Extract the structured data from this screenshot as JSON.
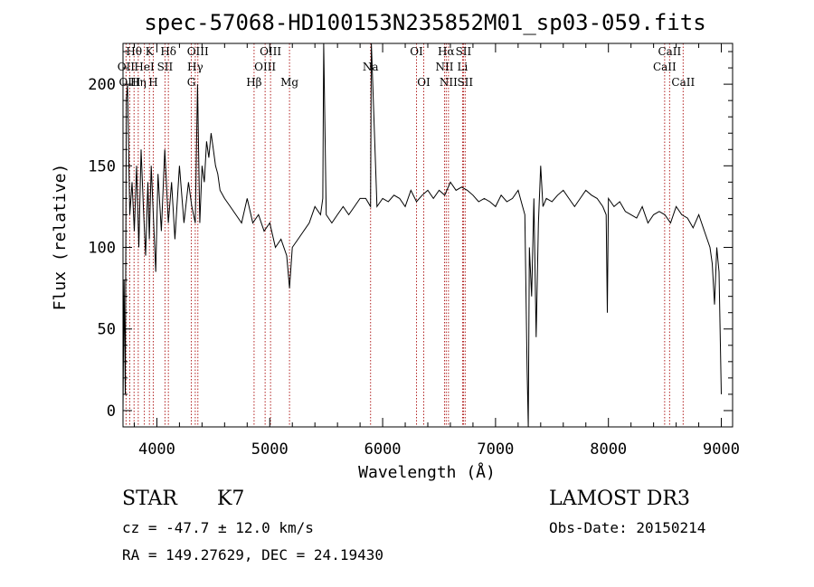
{
  "chart_data": {
    "type": "line",
    "title": "spec-57068-HD100153N235852M01_sp03-059.fits",
    "xlabel": "Wavelength (Å)",
    "ylabel": "Flux (relative)",
    "xlim": [
      3700,
      9100
    ],
    "ylim": [
      -10,
      225
    ],
    "x_ticks": [
      4000,
      5000,
      6000,
      7000,
      8000,
      9000
    ],
    "y_ticks": [
      0,
      50,
      100,
      150,
      200
    ],
    "grid": false,
    "series": [
      {
        "color": "#000000",
        "x": [
          3700,
          3710,
          3720,
          3730,
          3740,
          3760,
          3780,
          3800,
          3820,
          3840,
          3860,
          3880,
          3900,
          3920,
          3933,
          3950,
          3968,
          3990,
          4010,
          4040,
          4070,
          4101,
          4130,
          4160,
          4200,
          4240,
          4280,
          4310,
          4340,
          4360,
          4380,
          4400,
          4420,
          4440,
          4460,
          4480,
          4500,
          4520,
          4540,
          4560,
          4600,
          4650,
          4700,
          4750,
          4800,
          4850,
          4900,
          4950,
          5000,
          5050,
          5100,
          5150,
          5175,
          5200,
          5250,
          5300,
          5350,
          5400,
          5450,
          5470,
          5478,
          5500,
          5550,
          5600,
          5650,
          5700,
          5750,
          5800,
          5850,
          5893,
          5900,
          5950,
          6000,
          6050,
          6100,
          6150,
          6200,
          6250,
          6300,
          6350,
          6400,
          6450,
          6500,
          6550,
          6600,
          6650,
          6700,
          6750,
          6800,
          6850,
          6900,
          6950,
          7000,
          7050,
          7100,
          7150,
          7200,
          7240,
          7260,
          7280,
          7290,
          7300,
          7320,
          7340,
          7360,
          7380,
          7400,
          7420,
          7450,
          7500,
          7550,
          7600,
          7650,
          7700,
          7750,
          7800,
          7850,
          7900,
          7950,
          7980,
          7990,
          8000,
          8050,
          8100,
          8150,
          8200,
          8250,
          8300,
          8350,
          8400,
          8450,
          8500,
          8550,
          8600,
          8650,
          8700,
          8750,
          8800,
          8850,
          8900,
          8920,
          8940,
          8960,
          8980,
          9000
        ],
        "y": [
          0,
          80,
          10,
          190,
          200,
          120,
          140,
          110,
          150,
          100,
          160,
          125,
          95,
          140,
          105,
          150,
          120,
          85,
          145,
          110,
          160,
          115,
          140,
          105,
          150,
          115,
          140,
          125,
          115,
          200,
          115,
          150,
          140,
          165,
          155,
          170,
          160,
          150,
          145,
          135,
          130,
          125,
          120,
          115,
          130,
          115,
          120,
          110,
          115,
          100,
          105,
          95,
          75,
          100,
          105,
          110,
          115,
          125,
          120,
          130,
          230,
          120,
          115,
          120,
          125,
          120,
          125,
          130,
          130,
          125,
          225,
          125,
          130,
          128,
          132,
          130,
          125,
          135,
          128,
          132,
          135,
          130,
          135,
          132,
          140,
          135,
          137,
          135,
          132,
          128,
          130,
          128,
          125,
          132,
          128,
          130,
          135,
          125,
          120,
          25,
          -10,
          100,
          70,
          130,
          45,
          115,
          150,
          125,
          130,
          128,
          132,
          135,
          130,
          125,
          130,
          135,
          132,
          130,
          125,
          120,
          60,
          130,
          125,
          128,
          122,
          120,
          118,
          125,
          115,
          120,
          122,
          120,
          115,
          125,
          120,
          118,
          112,
          120,
          110,
          100,
          90,
          65,
          100,
          85,
          10
        ]
      }
    ],
    "emission_lines": [
      {
        "label": "Hθ",
        "wavelength": 3798,
        "row": 1
      },
      {
        "label": "OII",
        "wavelength": 3727,
        "row": 2
      },
      {
        "label": "OIII",
        "wavelength": 3760,
        "row": 3
      },
      {
        "label": "K",
        "wavelength": 3934,
        "row": 1
      },
      {
        "label": "HeI",
        "wavelength": 3889,
        "row": 2
      },
      {
        "label": "Hη",
        "wavelength": 3835,
        "row": 3
      },
      {
        "label": "Hδ",
        "wavelength": 4102,
        "row": 1
      },
      {
        "label": "SII",
        "wavelength": 4072,
        "row": 2
      },
      {
        "label": "H",
        "wavelength": 3968,
        "row": 3
      },
      {
        "label": "OIII",
        "wavelength": 4363,
        "row": 1
      },
      {
        "label": "Hγ",
        "wavelength": 4340,
        "row": 2
      },
      {
        "label": "G",
        "wavelength": 4305,
        "row": 3
      },
      {
        "label": "OIII",
        "wavelength": 5007,
        "row": 1
      },
      {
        "label": "OIII",
        "wavelength": 4959,
        "row": 2
      },
      {
        "label": "Hβ",
        "wavelength": 4861,
        "row": 3
      },
      {
        "label": "Mg",
        "wavelength": 5175,
        "row": 3
      },
      {
        "label": "Na",
        "wavelength": 5893,
        "row": 2
      },
      {
        "label": "OI",
        "wavelength": 6300,
        "row": 1
      },
      {
        "label": "OI",
        "wavelength": 6364,
        "row": 3
      },
      {
        "label": "Hα",
        "wavelength": 6563,
        "row": 1
      },
      {
        "label": "SII",
        "wavelength": 6716,
        "row": 1
      },
      {
        "label": "NII",
        "wavelength": 6548,
        "row": 2
      },
      {
        "label": "Li",
        "wavelength": 6708,
        "row": 2
      },
      {
        "label": "NII",
        "wavelength": 6583,
        "row": 3
      },
      {
        "label": "SII",
        "wavelength": 6731,
        "row": 3
      },
      {
        "label": "CaII",
        "wavelength": 8542,
        "row": 1
      },
      {
        "label": "CaII",
        "wavelength": 8498,
        "row": 2
      },
      {
        "label": "CaII",
        "wavelength": 8662,
        "row": 3
      }
    ]
  },
  "info": {
    "object_class": "STAR",
    "subclass": "K7",
    "survey": "LAMOST DR3",
    "cz": "cz = -47.7 ± 12.0 km/s",
    "obs_date": "Obs-Date: 20150214",
    "coords": "RA = 149.27629, DEC =  24.19430"
  },
  "colors": {
    "spectrum": "#000000",
    "line_markers": "#b22222",
    "axes": "#000000"
  }
}
